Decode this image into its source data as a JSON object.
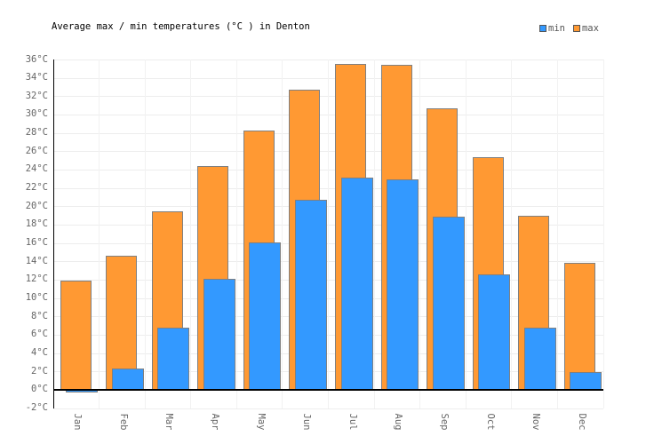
{
  "header": {
    "title": "Average max / min temperatures (°C ) in Denton"
  },
  "legend": {
    "items": [
      {
        "label": "min",
        "color": "#3399FF"
      },
      {
        "label": "max",
        "color": "#FF9933"
      }
    ]
  },
  "chart_data": {
    "type": "bar",
    "title": "Average max / min temperatures (°C ) in Denton",
    "categories": [
      "Jan",
      "Feb",
      "Mar",
      "Apr",
      "May",
      "Jun",
      "Jul",
      "Aug",
      "Sep",
      "Oct",
      "Nov",
      "Dec"
    ],
    "series": [
      {
        "name": "min",
        "color": "#3399FF",
        "values": [
          -0.2,
          2.3,
          6.8,
          12.1,
          16.1,
          20.7,
          23.1,
          22.9,
          18.9,
          12.6,
          6.8,
          1.9
        ]
      },
      {
        "name": "max",
        "color": "#FF9933",
        "values": [
          11.9,
          14.6,
          19.4,
          24.4,
          28.3,
          32.7,
          35.5,
          35.4,
          30.7,
          25.4,
          19.0,
          13.8
        ]
      }
    ],
    "xlabel": "",
    "ylabel": "",
    "ylim": [
      -2,
      36
    ],
    "ytick_step": 2,
    "ytick_suffix": "°C",
    "grid": true,
    "legend_position": "top-right",
    "bar_border_color": "#808080",
    "axis_color": "#000000",
    "tick_label_color": "#666666",
    "gridline_color": "#EDEDED",
    "vertical_gridline_color": "#F2F2F2"
  }
}
